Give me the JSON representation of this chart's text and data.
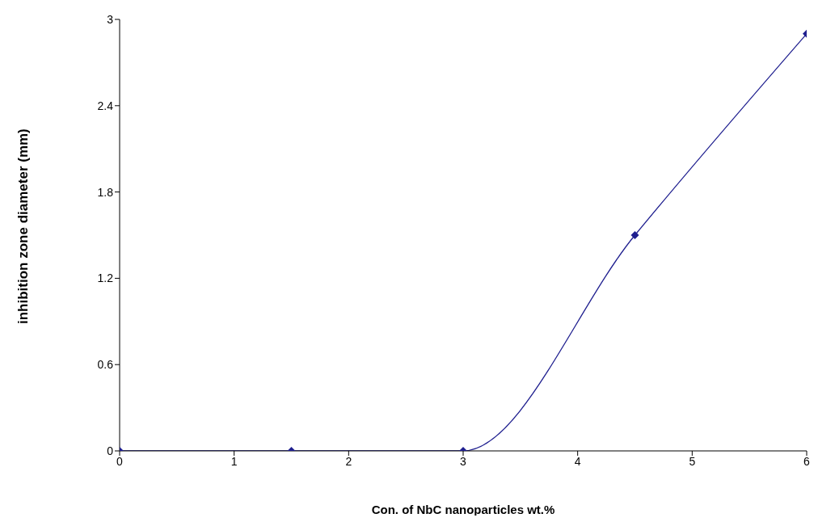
{
  "chart_data": {
    "type": "line",
    "xlabel": "Con. of NbC nanoparticles wt.%",
    "ylabel": "inhibition zone diameter (mm)",
    "x": [
      0,
      1.5,
      3,
      4.5,
      6
    ],
    "series": [
      {
        "color": "#1f1f8f",
        "values": [
          0,
          0,
          0,
          1.5,
          2.9
        ]
      }
    ],
    "xlim": [
      0,
      6
    ],
    "xticks": [
      0,
      1,
      2,
      3,
      4,
      5,
      6
    ],
    "ylim": [
      0,
      3
    ],
    "yticks": [
      0,
      0.6,
      1.2,
      1.8,
      2.4,
      3
    ],
    "grid": false,
    "legend": false,
    "marker": "diamond",
    "line_style": "solid"
  }
}
